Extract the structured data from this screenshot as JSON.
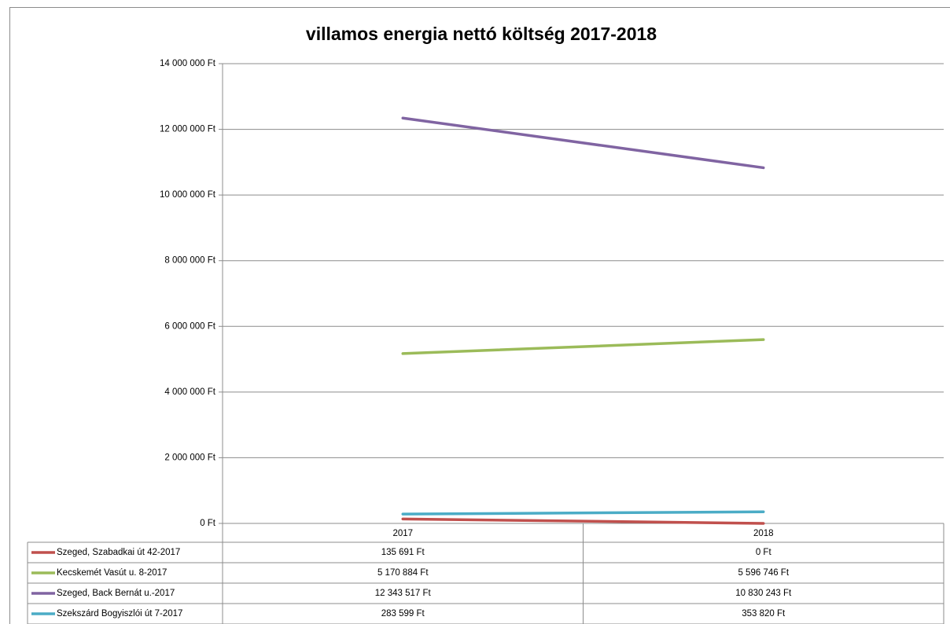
{
  "chart_data": {
    "type": "line",
    "title": "villamos energia nettó költség 2017-2018",
    "categories": [
      "2017",
      "2018"
    ],
    "series": [
      {
        "name": "Szeged, Szabadkai út 42-2017",
        "color": "#c0504d",
        "values": [
          135691,
          0
        ],
        "value_labels": [
          "135 691 Ft",
          "0 Ft"
        ]
      },
      {
        "name": "Kecskemét Vasút u. 8-2017",
        "color": "#9bbb59",
        "values": [
          5170884,
          5596746
        ],
        "value_labels": [
          "5 170 884 Ft",
          "5 596 746 Ft"
        ]
      },
      {
        "name": "Szeged, Back Bernát u.-2017",
        "color": "#8064a2",
        "values": [
          12343517,
          10830243
        ],
        "value_labels": [
          "12 343 517 Ft",
          "10 830 243 Ft"
        ]
      },
      {
        "name": "Szekszárd Bogyiszlói út 7-2017",
        "color": "#4bacc6",
        "values": [
          283599,
          353820
        ],
        "value_labels": [
          "283 599 Ft",
          "353 820 Ft"
        ]
      }
    ],
    "ylim": [
      0,
      14000000
    ],
    "yticks": [
      {
        "value": 0,
        "label": "0 Ft"
      },
      {
        "value": 2000000,
        "label": "2 000 000 Ft"
      },
      {
        "value": 4000000,
        "label": "4 000 000 Ft"
      },
      {
        "value": 6000000,
        "label": "6 000 000 Ft"
      },
      {
        "value": 8000000,
        "label": "8 000 000 Ft"
      },
      {
        "value": 10000000,
        "label": "10 000 000 Ft"
      },
      {
        "value": 12000000,
        "label": "12 000 000 Ft"
      },
      {
        "value": 14000000,
        "label": "14 000 000 Ft"
      }
    ],
    "grid": true,
    "legend": "table"
  }
}
